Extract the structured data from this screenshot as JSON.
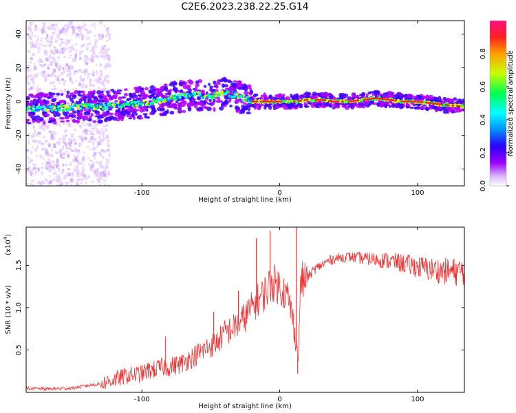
{
  "title": "C2E6.2023.238.22.25.G14",
  "chart_data": [
    {
      "type": "heatmap",
      "name": "spectrogram",
      "xlabel": "Height of straight line (km)",
      "ylabel": "Frequency (Hz)",
      "xlim": [
        -184,
        134
      ],
      "ylim": [
        -50,
        48
      ],
      "x_ticks": [
        -100,
        0,
        100
      ],
      "x_tick_labels": [
        "-100",
        "0",
        "100"
      ],
      "y_ticks": [
        -40,
        -20,
        0,
        20,
        40
      ],
      "y_tick_labels": [
        "-40",
        "-20",
        "0",
        "20",
        "40"
      ],
      "colorbar": {
        "label": "Normalized spectral amplitude",
        "range": [
          0,
          1
        ],
        "ticks": [
          0.0,
          0.2,
          0.4,
          0.6,
          0.8
        ],
        "tick_labels": [
          "0.0",
          "0.2",
          "0.4",
          "0.6",
          "0.8"
        ],
        "colors": [
          "#ffffff",
          "#b400ff",
          "#3c00ff",
          "#0080ff",
          "#00ffff",
          "#00ff60",
          "#c8ff00",
          "#ffb000",
          "#ff2020",
          "#ff1080"
        ]
      },
      "ridge": {
        "x": [
          -184,
          -170,
          -160,
          -150,
          -140,
          -130,
          -120,
          -110,
          -100,
          -90,
          -80,
          -70,
          -60,
          -50,
          -45,
          -40,
          -35,
          -30,
          -25,
          -20,
          -10,
          0,
          10,
          20,
          30,
          40,
          50,
          60,
          70,
          80,
          90,
          100,
          110,
          120,
          134
        ],
        "y": [
          -4,
          -4,
          -4,
          -3,
          -3,
          -3,
          -2,
          -1,
          -1,
          0,
          2,
          3,
          4,
          3,
          4,
          5,
          4,
          3,
          2,
          0,
          0,
          0,
          0,
          1,
          1,
          0,
          0,
          1,
          2,
          1,
          0,
          0,
          -1,
          -2,
          -3
        ]
      },
      "peak_color": "#ff2020",
      "grid": false
    },
    {
      "type": "line",
      "name": "snr",
      "xlabel": "Height of straight line (km)",
      "ylabel": "SNR (10 * v/v)",
      "y_multiplier": "(x10",
      "y_multiplier_exp": "4",
      "y_multiplier_close": ")",
      "xlim": [
        -184,
        134
      ],
      "ylim": [
        0,
        1.95
      ],
      "x_ticks": [
        -100,
        0,
        100
      ],
      "x_tick_labels": [
        "-100",
        "0",
        "100"
      ],
      "y_ticks": [
        0.5,
        1.0,
        1.5
      ],
      "y_tick_labels": [
        "0.5",
        "1.0",
        "1.5"
      ],
      "color": "#ee3333",
      "series": [
        {
          "x": [
            -184,
            -170,
            -150,
            -140,
            -130,
            -120,
            -110,
            -100,
            -95,
            -90,
            -85,
            -80,
            -75,
            -70,
            -65,
            -60,
            -55,
            -50,
            -45,
            -40,
            -35,
            -30,
            -25,
            -20,
            -18,
            -15,
            -12,
            -10,
            -8,
            -5,
            0,
            5,
            8,
            10,
            12,
            13,
            14,
            15,
            20,
            25,
            30,
            35,
            40,
            50,
            60,
            70,
            80,
            90,
            100,
            110,
            120,
            134
          ],
          "y": [
            0.05,
            0.04,
            0.05,
            0.08,
            0.1,
            0.15,
            0.2,
            0.22,
            0.26,
            0.27,
            0.3,
            0.3,
            0.32,
            0.35,
            0.4,
            0.45,
            0.5,
            0.55,
            0.6,
            0.7,
            0.75,
            0.8,
            0.9,
            1.0,
            1.05,
            1.1,
            1.15,
            1.2,
            1.25,
            1.3,
            1.25,
            1.15,
            1.0,
            0.8,
            0.6,
            0.4,
            0.6,
            1.3,
            1.35,
            1.45,
            1.5,
            1.55,
            1.58,
            1.6,
            1.58,
            1.57,
            1.55,
            1.52,
            1.48,
            1.45,
            1.43,
            1.42
          ]
        }
      ],
      "spikes": [
        {
          "x": -83,
          "y": 0.66
        },
        {
          "x": -48,
          "y": 0.95
        },
        {
          "x": -30,
          "y": 1.2
        },
        {
          "x": -17,
          "y": 1.82
        },
        {
          "x": -7,
          "y": 1.91
        },
        {
          "x": 12,
          "y": 1.95
        },
        {
          "x": 13,
          "y": 0.22
        }
      ],
      "grid": false
    }
  ]
}
